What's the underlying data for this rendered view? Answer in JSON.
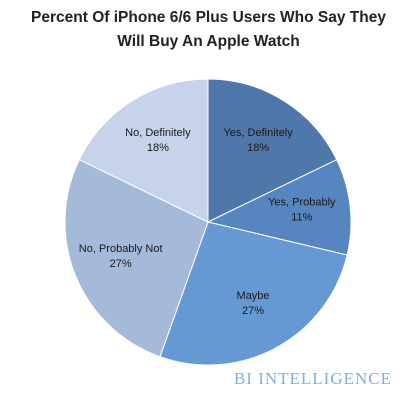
{
  "chart_data": {
    "type": "pie",
    "title": "Percent Of iPhone 6/6 Plus Users Who Say They Will Buy An Apple Watch",
    "categories": [
      "Yes, Definitely",
      "Yes, Probably",
      "Maybe",
      "No, Probably Not",
      "No, Definitely"
    ],
    "values": [
      18,
      11,
      27,
      27,
      18
    ],
    "value_labels": [
      "18%",
      "11%",
      "27%",
      "27%",
      "18%"
    ],
    "colors": [
      "#4f77a9",
      "#5685bf",
      "#6699d3",
      "#a5b9db",
      "#c6d3ea"
    ],
    "source": "BI INTELLIGENCE"
  }
}
